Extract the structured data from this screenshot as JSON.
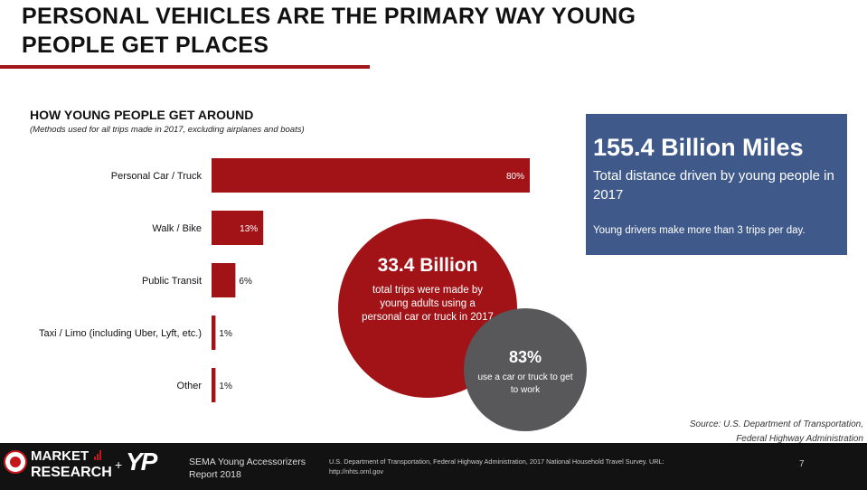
{
  "slide": {
    "title_line1": "PERSONAL VEHICLES ARE THE PRIMARY WAY YOUNG",
    "title_line2": "PEOPLE GET PLACES"
  },
  "chart_data": {
    "type": "bar",
    "orientation": "horizontal",
    "title": "HOW YOUNG PEOPLE GET AROUND",
    "subtitle": "(Methods used for all trips made in 2017, excluding airplanes and boats)",
    "categories": [
      "Personal Car / Truck",
      "Walk / Bike",
      "Public Transit",
      "Taxi / Limo (including Uber, Lyft, etc.)",
      "Other"
    ],
    "values": [
      80,
      13,
      6,
      1,
      1
    ],
    "value_labels": [
      "80%",
      "13%",
      "6%",
      "1%",
      "1%"
    ],
    "xlim": [
      0,
      100
    ],
    "grid": false,
    "bar_color": "#a11317"
  },
  "stat_box": {
    "headline": "155.4 Billion Miles",
    "description": "Total distance driven by young people in 2017",
    "note": "Young drivers make more than 3 trips per day.",
    "color": "#3f5a8a"
  },
  "circle_red": {
    "headline": "33.4 Billion",
    "text": "total trips were made by young adults using a personal car or truck in 2017",
    "color": "#a11317"
  },
  "circle_grey": {
    "headline": "83%",
    "text": "use a car or truck to get to work",
    "color": "#58585a"
  },
  "source": {
    "line1": "Source: U.S. Department of Transportation,",
    "line2": "Federal Highway Administration"
  },
  "footer": {
    "logo_line1": "MARKET",
    "logo_line2": "RESEARCH",
    "plus": "+",
    "logo_yp": "YP",
    "report_line1": "SEMA Young Accessorizers",
    "report_line2": "Report 2018",
    "citation": "U.S. Department of Transportation, Federal Highway Administration, 2017 National Household Travel Survey. URL: http://nhts.ornl.gov",
    "page_number": "7"
  }
}
